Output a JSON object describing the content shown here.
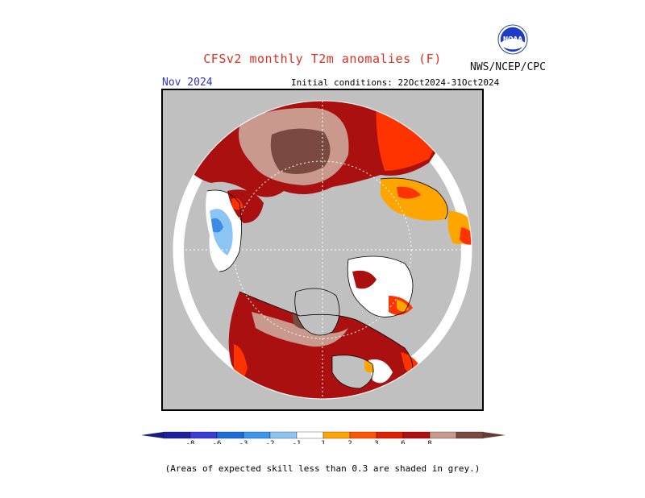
{
  "title": "CFSv2 monthly T2m anomalies (F)",
  "agency": "NWS/NCEP/CPC",
  "logo_text": "NOAA",
  "month_label": "Nov 2024",
  "initial_conditions": "Initial conditions: 22Oct2024-31Oct2024",
  "note": "(Areas of expected skill less than 0.3 are shaded in grey.)",
  "colorbar": {
    "segments": [
      {
        "color": "#2020a0",
        "label": "-8"
      },
      {
        "color": "#3b3bd6",
        "label": "-6"
      },
      {
        "color": "#1e6ed8",
        "label": "-3"
      },
      {
        "color": "#3c96ee",
        "label": "-2"
      },
      {
        "color": "#8cc4f4",
        "label": "-1"
      },
      {
        "color": "#ffffff",
        "label": "1"
      },
      {
        "color": "#ffa500",
        "label": "2"
      },
      {
        "color": "#ff5500",
        "label": "3"
      },
      {
        "color": "#e02000",
        "label": "6"
      },
      {
        "color": "#b01010",
        "label": "8"
      },
      {
        "color": "#c89a8e",
        "label": ""
      },
      {
        "color": "#7a4a40",
        "label": ""
      }
    ]
  },
  "map_colors": {
    "no_skill": "#c0c0c0",
    "dark_red": "#aa1010",
    "red": "#ff3300",
    "orange": "#ffa500",
    "pink": "#c8998c",
    "brown": "#7a4a40",
    "light_blue": "#8cc4f4",
    "blue": "#3c8ce6"
  }
}
